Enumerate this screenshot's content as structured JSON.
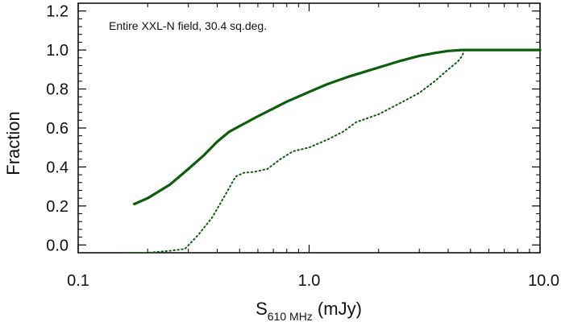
{
  "chart_data": {
    "type": "line",
    "title": "",
    "annotation": "Entire XXL-N field, 30.4 sq.deg.",
    "xlabel": {
      "main": "S",
      "subscript": "610 MHz",
      "unit": " (mJy)"
    },
    "ylabel": "Fraction",
    "xscale": "log",
    "xlim": [
      0.1,
      10.0
    ],
    "ylim": [
      -0.04,
      1.24
    ],
    "x_ticks": [
      {
        "value": 0.1,
        "label": "0.1"
      },
      {
        "value": 1.0,
        "label": "1.0"
      },
      {
        "value": 10.0,
        "label": "10.0"
      }
    ],
    "y_ticks": [
      {
        "value": 0.0,
        "label": "0.0"
      },
      {
        "value": 0.2,
        "label": "0.2"
      },
      {
        "value": 0.4,
        "label": "0.4"
      },
      {
        "value": 0.6,
        "label": "0.6"
      },
      {
        "value": 0.8,
        "label": "0.8"
      },
      {
        "value": 1.0,
        "label": "1.0"
      },
      {
        "value": 1.2,
        "label": "1.2"
      }
    ],
    "grid": false,
    "series": [
      {
        "style": "solid",
        "color": "#0b5e0b",
        "x": [
          0.175,
          0.2,
          0.25,
          0.3,
          0.35,
          0.4,
          0.45,
          0.5,
          0.6,
          0.7,
          0.8,
          1.0,
          1.2,
          1.5,
          2.0,
          2.5,
          3.0,
          3.5,
          4.0,
          4.6,
          6.0,
          8.0,
          10.0
        ],
        "y": [
          0.21,
          0.24,
          0.31,
          0.39,
          0.46,
          0.53,
          0.58,
          0.61,
          0.66,
          0.7,
          0.735,
          0.785,
          0.825,
          0.865,
          0.91,
          0.945,
          0.97,
          0.985,
          0.995,
          1.0,
          1.0,
          1.0,
          1.0
        ]
      },
      {
        "style": "dotted",
        "color": "#0b5e0b",
        "x": [
          0.16,
          0.2,
          0.25,
          0.29,
          0.33,
          0.38,
          0.43,
          0.48,
          0.52,
          0.58,
          0.66,
          0.75,
          0.85,
          1.0,
          1.2,
          1.4,
          1.6,
          2.0,
          2.5,
          3.0,
          3.5,
          4.0,
          4.4,
          4.6,
          4.7,
          6.0,
          8.0,
          10.0
        ],
        "y": [
          -0.04,
          -0.04,
          -0.03,
          -0.02,
          0.05,
          0.14,
          0.25,
          0.35,
          0.37,
          0.375,
          0.39,
          0.44,
          0.48,
          0.5,
          0.54,
          0.58,
          0.63,
          0.67,
          0.73,
          0.78,
          0.84,
          0.9,
          0.94,
          0.97,
          1.0,
          1.0,
          1.0,
          1.0
        ]
      }
    ]
  }
}
